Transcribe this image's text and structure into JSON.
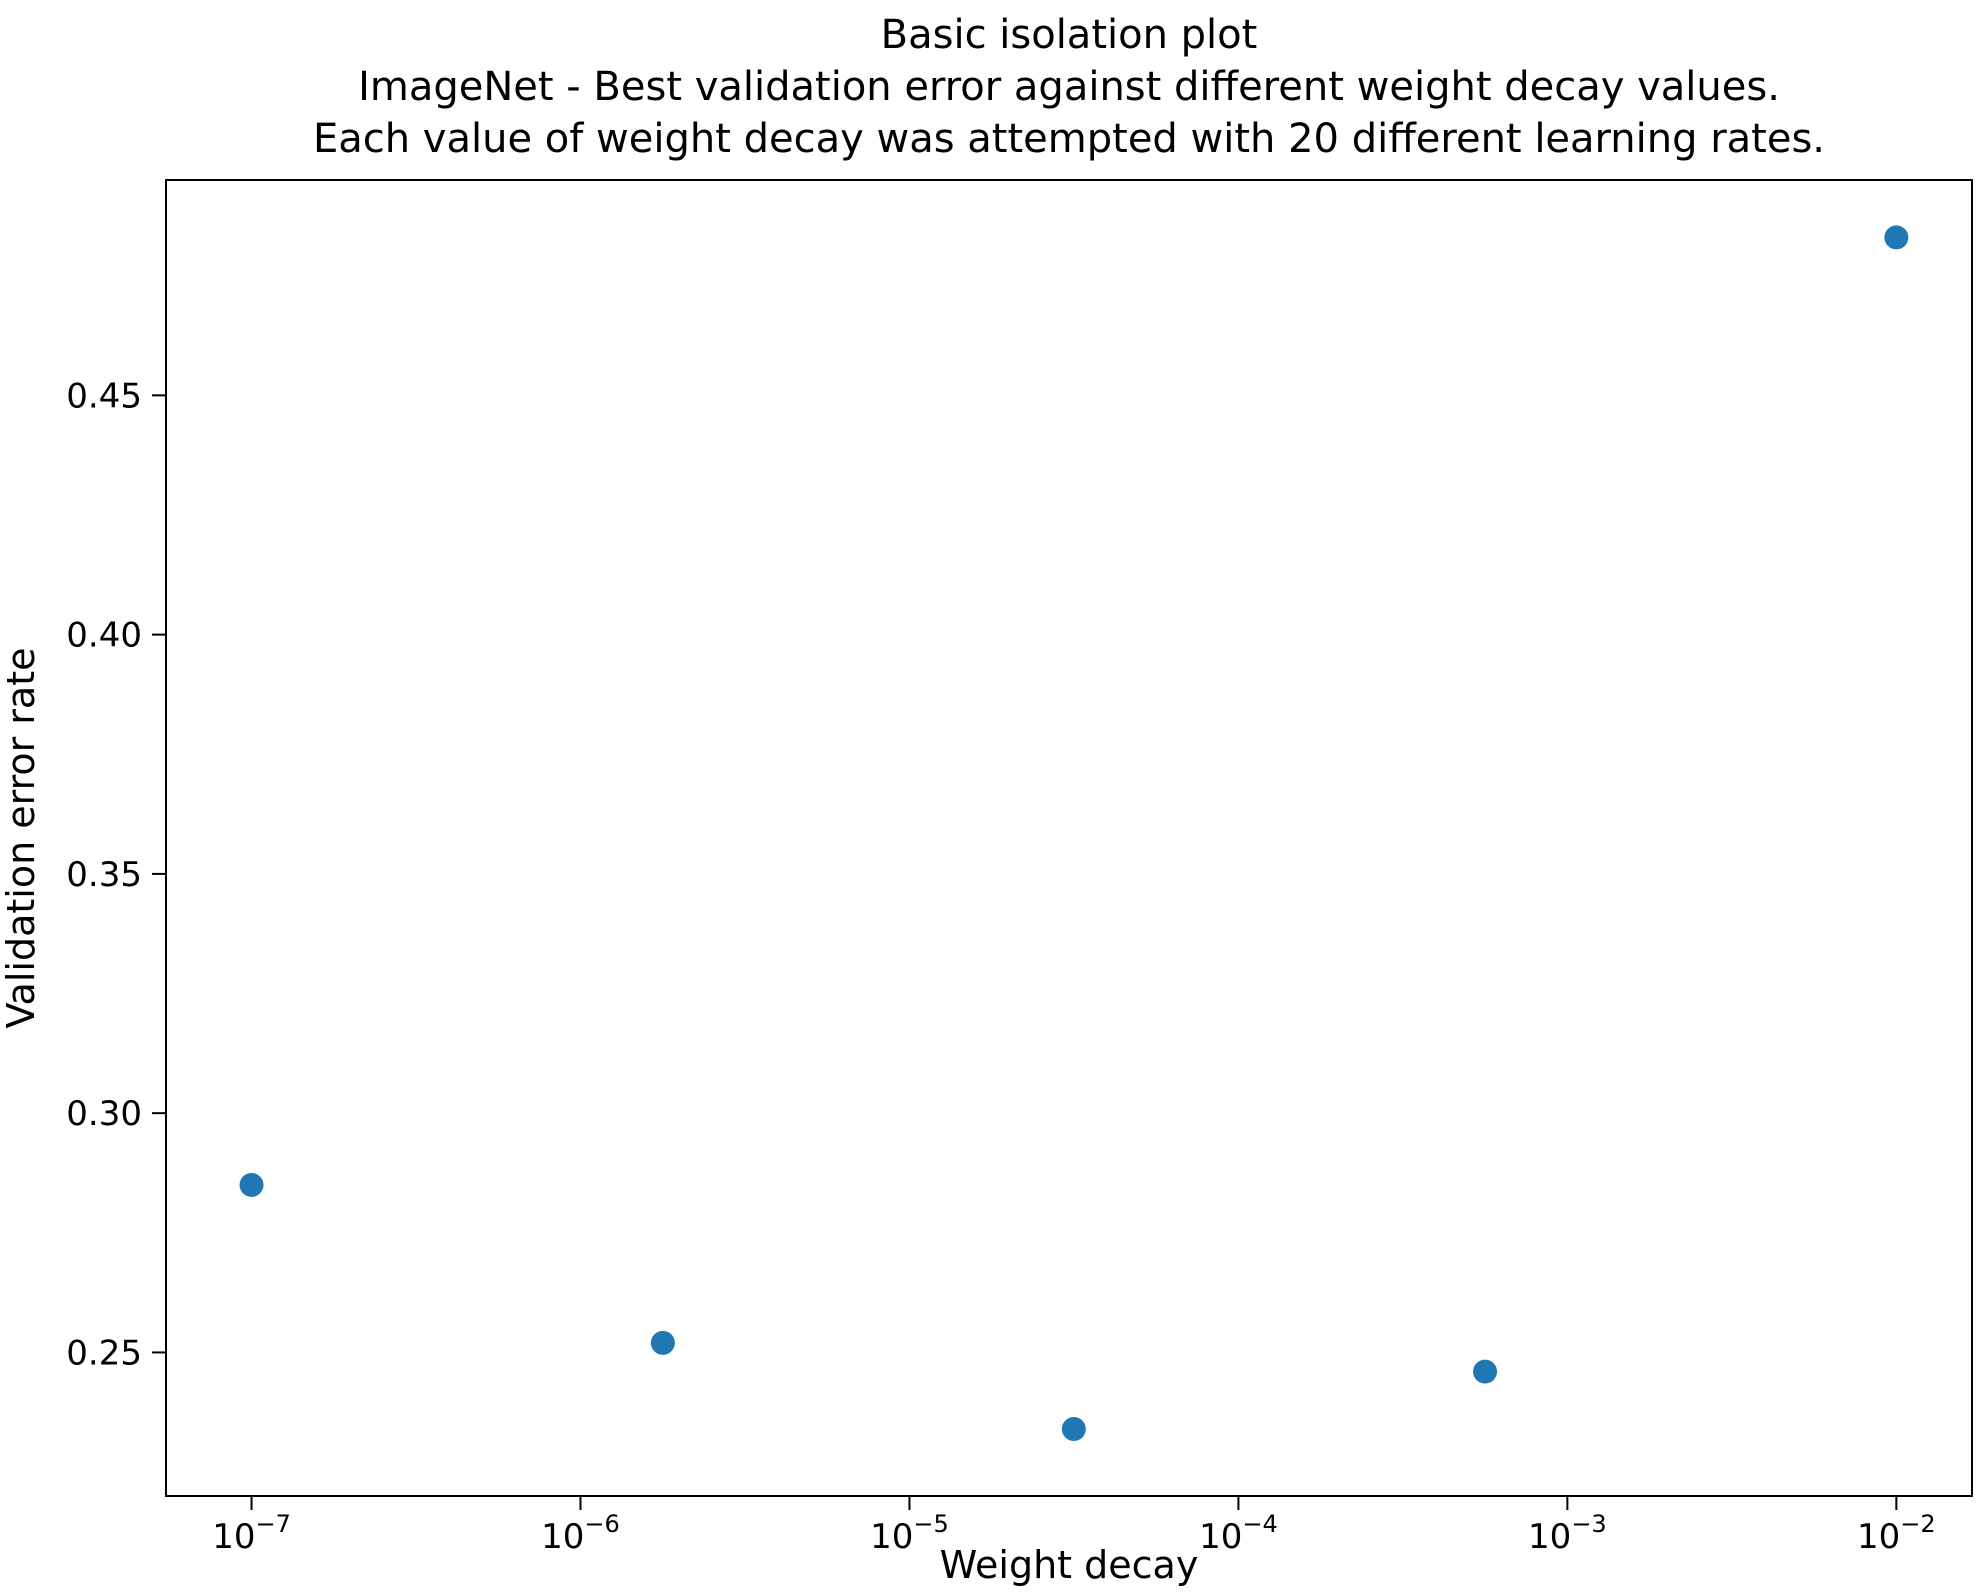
{
  "chart_data": {
    "type": "scatter",
    "title": "Basic isolation plot",
    "subtitle1": "ImageNet - Best validation error against different weight decay values.",
    "subtitle2": "Each value of weight decay was attempted with 20 different learning rates.",
    "xlabel": "Weight decay",
    "ylabel": "Validation error rate",
    "x_scale": "log",
    "x": [
      1e-07,
      1.78e-06,
      3.16e-05,
      0.000562,
      0.01
    ],
    "y": [
      0.285,
      0.252,
      0.234,
      0.246,
      0.483
    ],
    "x_tick_exponents": [
      -7,
      -6,
      -5,
      -4,
      -3,
      -2
    ],
    "x_tick_base": "10",
    "y_ticks": [
      0.25,
      0.3,
      0.35,
      0.4,
      0.45
    ],
    "xlim_log": [
      -7.26,
      -1.77
    ],
    "ylim": [
      0.22,
      0.495
    ],
    "marker_color": "#1f77b4",
    "marker_radius_px": 12,
    "axis_color": "#000000",
    "grid": false,
    "legend": null
  }
}
